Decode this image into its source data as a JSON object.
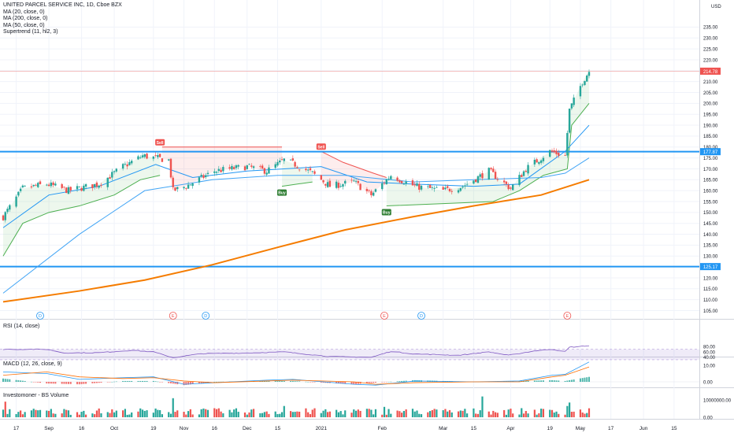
{
  "header": {
    "title": "UNITED PARCEL SERVICE INC, 1D, Cboe BZX",
    "indicators": [
      "MA (20, close, 0)",
      "MA (200, close, 0)",
      "MA (50, close, 0)",
      "Supertrend (11, hl2, 3)"
    ]
  },
  "colors": {
    "up": "#26a69a",
    "down": "#ef5350",
    "ma20": "#2196f3",
    "ma50": "#42a5f5",
    "ma200": "#f57c00",
    "hline": "#2196f3",
    "st_up": "#4caf50",
    "st_down": "#ef5350",
    "rsi": "#7e57c2",
    "macd": "#2196f3",
    "signal": "#ff6d00"
  },
  "chart_data": [
    {
      "type": "candlestick",
      "name": "price",
      "title": "UNITED PARCEL SERVICE INC, 1D, Cboe BZX",
      "currency": "USD",
      "ylim": [
        105,
        235
      ],
      "y_ticks": [
        105,
        110,
        115,
        120,
        125,
        130,
        135,
        140,
        145,
        150,
        155,
        160,
        165,
        170,
        175,
        180,
        185,
        190,
        195,
        200,
        205,
        210,
        215,
        220,
        225,
        230,
        235
      ],
      "x_ticks": [
        "17",
        "Sep",
        "16",
        "Oct",
        "19",
        "Nov",
        "16",
        "Dec",
        "15",
        "2021",
        "Feb",
        "Mar",
        "15",
        "Apr",
        "19",
        "May",
        "17",
        "Jun",
        "15"
      ],
      "x_tick_dates": [
        "2020-08-17",
        "2020-09-01",
        "2020-09-16",
        "2020-10-01",
        "2020-10-19",
        "2020-11-02",
        "2020-11-16",
        "2020-12-01",
        "2020-12-15",
        "2021-01-04",
        "2021-02-01",
        "2021-03-01",
        "2021-03-15",
        "2021-04-01",
        "2021-04-19",
        "2021-05-03",
        "2021-05-17",
        "2021-06-01",
        "2021-06-15"
      ],
      "last_price": 214.78,
      "horizontal_lines": [
        177.87,
        125.17
      ],
      "close_key": [
        [
          "2020-08-11",
          148
        ],
        [
          "2020-08-20",
          161
        ],
        [
          "2020-08-31",
          163
        ],
        [
          "2020-09-10",
          160
        ],
        [
          "2020-09-24",
          163
        ],
        [
          "2020-10-05",
          171
        ],
        [
          "2020-10-14",
          176
        ],
        [
          "2020-10-26",
          174
        ],
        [
          "2020-10-28",
          160
        ],
        [
          "2020-11-03",
          162
        ],
        [
          "2020-11-16",
          169
        ],
        [
          "2020-12-01",
          171
        ],
        [
          "2020-12-10",
          169
        ],
        [
          "2020-12-18",
          174
        ],
        [
          "2020-12-23",
          172
        ],
        [
          "2020-12-31",
          168
        ],
        [
          "2021-01-08",
          162
        ],
        [
          "2021-01-19",
          164
        ],
        [
          "2021-01-27",
          158
        ],
        [
          "2021-02-05",
          167
        ],
        [
          "2021-02-16",
          162
        ],
        [
          "2021-03-01",
          160
        ],
        [
          "2021-03-10",
          162
        ],
        [
          "2021-03-22",
          169
        ],
        [
          "2021-04-01",
          161
        ],
        [
          "2021-04-08",
          170
        ],
        [
          "2021-04-19",
          178
        ],
        [
          "2021-04-26",
          176
        ],
        [
          "2021-04-28",
          197
        ],
        [
          "2021-05-04",
          210
        ],
        [
          "2021-05-07",
          214.78
        ]
      ],
      "series": [
        {
          "name": "MA (20, close, 0)",
          "key": [
            [
              "2020-08-11",
              143
            ],
            [
              "2020-09-01",
              158
            ],
            [
              "2020-09-24",
              162
            ],
            [
              "2020-10-20",
              172
            ],
            [
              "2020-11-06",
              166
            ],
            [
              "2020-12-01",
              169
            ],
            [
              "2021-01-04",
              171
            ],
            [
              "2021-01-25",
              164
            ],
            [
              "2021-02-16",
              163
            ],
            [
              "2021-03-15",
              162
            ],
            [
              "2021-04-05",
              163
            ],
            [
              "2021-04-26",
              178
            ],
            [
              "2021-05-07",
              190
            ]
          ]
        },
        {
          "name": "MA (50, close, 0)",
          "key": [
            [
              "2020-08-11",
              113
            ],
            [
              "2020-09-15",
              140
            ],
            [
              "2020-10-15",
              160
            ],
            [
              "2020-11-15",
              165
            ],
            [
              "2020-12-15",
              167
            ],
            [
              "2021-01-15",
              167
            ],
            [
              "2021-02-15",
              164
            ],
            [
              "2021-03-15",
              165
            ],
            [
              "2021-04-15",
              166
            ],
            [
              "2021-04-26",
              168
            ],
            [
              "2021-05-07",
              175
            ]
          ]
        },
        {
          "name": "MA (200, close, 0)",
          "key": [
            [
              "2020-08-11",
              109
            ],
            [
              "2020-09-15",
              114
            ],
            [
              "2020-10-15",
              119
            ],
            [
              "2020-11-15",
              126
            ],
            [
              "2020-12-15",
              134
            ],
            [
              "2021-01-15",
              142
            ],
            [
              "2021-02-15",
              148
            ],
            [
              "2021-03-15",
              153
            ],
            [
              "2021-04-15",
              158
            ],
            [
              "2021-05-07",
              165
            ]
          ]
        }
      ],
      "supertrend": [
        {
          "trend": "up",
          "key": [
            [
              "2020-08-11",
              130
            ],
            [
              "2020-08-20",
              145
            ],
            [
              "2020-09-01",
              150
            ],
            [
              "2020-09-15",
              153
            ],
            [
              "2020-10-01",
              158
            ],
            [
              "2020-10-13",
              165
            ],
            [
              "2020-10-22",
              167
            ]
          ]
        },
        {
          "trend": "down",
          "key": [
            [
              "2020-10-23",
              180
            ],
            [
              "2020-12-17",
              180
            ]
          ]
        },
        {
          "trend": "up",
          "key": [
            [
              "2020-12-17",
              162
            ],
            [
              "2020-12-31",
              164
            ]
          ]
        },
        {
          "trend": "down",
          "key": [
            [
              "2021-01-04",
              178
            ],
            [
              "2021-01-14",
              173
            ],
            [
              "2021-01-28",
              168
            ],
            [
              "2021-02-03",
              166
            ]
          ]
        },
        {
          "trend": "up",
          "key": [
            [
              "2021-02-03",
              153
            ],
            [
              "2021-03-24",
              155
            ],
            [
              "2021-04-05",
              160
            ],
            [
              "2021-04-16",
              167
            ],
            [
              "2021-04-27",
              170
            ],
            [
              "2021-04-29",
              190
            ],
            [
              "2021-05-07",
              200
            ]
          ]
        }
      ],
      "signals": [
        {
          "label": "Sell",
          "date": "2020-10-22"
        },
        {
          "label": "Buy",
          "date": "2020-12-17"
        },
        {
          "label": "Sell",
          "date": "2021-01-04"
        },
        {
          "label": "Buy",
          "date": "2021-02-03"
        }
      ],
      "events": [
        {
          "label": "D",
          "date": "2020-08-28"
        },
        {
          "label": "E",
          "date": "2020-10-28"
        },
        {
          "label": "D",
          "date": "2020-11-12"
        },
        {
          "label": "E",
          "date": "2021-02-02"
        },
        {
          "label": "D",
          "date": "2021-02-19"
        },
        {
          "label": "E",
          "date": "2021-04-27"
        }
      ]
    },
    {
      "type": "line",
      "name": "rsi",
      "title": "RSI (14, close)",
      "y_ticks": [
        40,
        60,
        80
      ],
      "ylim": [
        25,
        90
      ],
      "band": [
        30,
        70
      ],
      "key": [
        [
          "2020-08-11",
          70
        ],
        [
          "2020-08-31",
          70
        ],
        [
          "2020-09-08",
          56
        ],
        [
          "2020-09-24",
          57
        ],
        [
          "2020-10-09",
          66
        ],
        [
          "2020-10-19",
          60
        ],
        [
          "2020-10-28",
          38
        ],
        [
          "2020-11-10",
          53
        ],
        [
          "2020-12-01",
          56
        ],
        [
          "2020-12-18",
          60
        ],
        [
          "2021-01-08",
          42
        ],
        [
          "2021-01-27",
          39
        ],
        [
          "2021-02-05",
          62
        ],
        [
          "2021-02-16",
          52
        ],
        [
          "2021-03-08",
          47
        ],
        [
          "2021-03-22",
          60
        ],
        [
          "2021-03-31",
          47
        ],
        [
          "2021-04-12",
          64
        ],
        [
          "2021-04-20",
          70
        ],
        [
          "2021-04-26",
          61
        ],
        [
          "2021-04-28",
          78
        ],
        [
          "2021-05-07",
          84
        ]
      ]
    },
    {
      "type": "line",
      "name": "macd",
      "title": "MACD (12, 26, close, 9)",
      "y_ticks": [
        0,
        10
      ],
      "ylim": [
        -4,
        13
      ],
      "series": [
        {
          "name": "MACD",
          "key": [
            [
              "2020-08-11",
              6
            ],
            [
              "2020-08-31",
              5
            ],
            [
              "2020-09-15",
              1.5
            ],
            [
              "2020-10-05",
              2.5
            ],
            [
              "2020-10-19",
              3
            ],
            [
              "2020-11-02",
              -1.5
            ],
            [
              "2020-11-16",
              -0.5
            ],
            [
              "2020-12-10",
              1
            ],
            [
              "2020-12-22",
              1.5
            ],
            [
              "2021-01-19",
              -1.5
            ],
            [
              "2021-01-29",
              -2
            ],
            [
              "2021-02-16",
              0.5
            ],
            [
              "2021-03-15",
              0
            ],
            [
              "2021-04-05",
              0.5
            ],
            [
              "2021-04-20",
              4
            ],
            [
              "2021-04-26",
              4.5
            ],
            [
              "2021-05-07",
              12
            ]
          ]
        },
        {
          "name": "Signal",
          "key": [
            [
              "2020-08-11",
              4
            ],
            [
              "2020-08-31",
              6
            ],
            [
              "2020-09-15",
              3
            ],
            [
              "2020-10-05",
              2
            ],
            [
              "2020-10-19",
              2.5
            ],
            [
              "2020-11-02",
              0.5
            ],
            [
              "2020-11-16",
              -0.5
            ],
            [
              "2020-12-10",
              0.5
            ],
            [
              "2020-12-22",
              1
            ],
            [
              "2021-01-19",
              0
            ],
            [
              "2021-01-29",
              -1.5
            ],
            [
              "2021-02-16",
              -0.5
            ],
            [
              "2021-03-15",
              0
            ],
            [
              "2021-04-05",
              0
            ],
            [
              "2021-04-20",
              3
            ],
            [
              "2021-04-26",
              4
            ],
            [
              "2021-05-07",
              9
            ]
          ]
        }
      ]
    },
    {
      "type": "bar",
      "name": "volume",
      "title": "Investomoner - BS Volume",
      "y_ticks": [
        0,
        10000000
      ],
      "y_tick_labels": [
        "0.00",
        "10000000.00"
      ],
      "ylim": [
        0,
        13000000
      ],
      "typical": 3500000,
      "spikes": [
        [
          "2020-08-12",
          9000000
        ],
        [
          "2020-10-28",
          11000000
        ],
        [
          "2020-12-18",
          6500000
        ],
        [
          "2021-02-02",
          6000000
        ],
        [
          "2021-03-19",
          12000000
        ],
        [
          "2021-04-27",
          6500000
        ],
        [
          "2021-04-28",
          8500000
        ]
      ]
    }
  ]
}
